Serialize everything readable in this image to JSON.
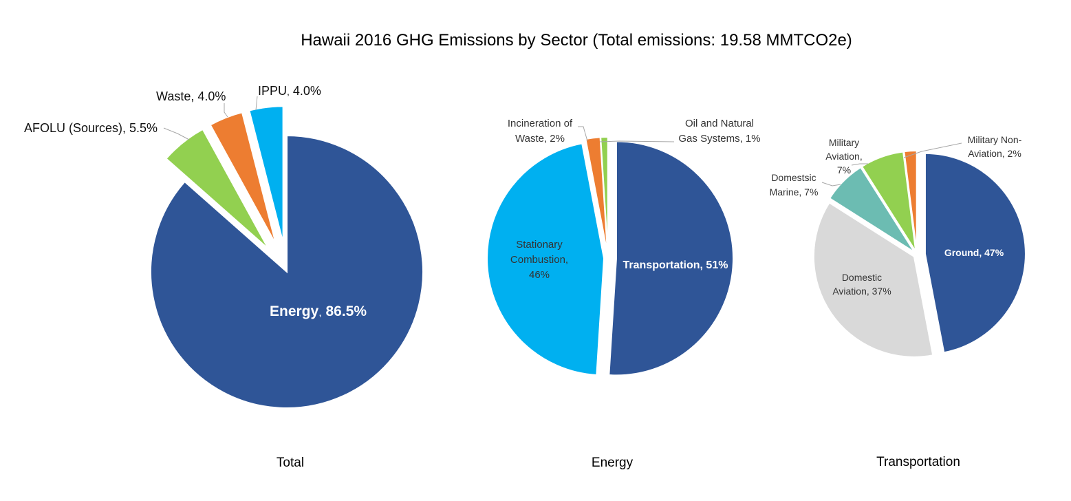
{
  "title": "Hawaii 2016 GHG Emissions by Sector (Total emissions: 19.58 MMTCO2e)",
  "colors": {
    "energy": "#2f5597",
    "afolu": "#92d050",
    "waste": "#ed7d31",
    "ippu": "#00b0f0",
    "stationary": "#00b0f0",
    "incineration": "#ed7d31",
    "oilgas": "#92d050",
    "ground": "#2f5597",
    "domestic_aviation": "#d9d9d9",
    "domestic_marine": "#6cbcb2",
    "military_aviation": "#92d050",
    "military_non_aviation": "#ed7d31"
  },
  "chart_data": [
    {
      "type": "pie",
      "caption": "Total",
      "slices": [
        {
          "key": "energy",
          "label": "Energy",
          "value": 86.5,
          "display": "86.5%"
        },
        {
          "key": "afolu",
          "label": "AFOLU (Sources)",
          "value": 5.5,
          "display": "5.5%"
        },
        {
          "key": "waste",
          "label": "Waste",
          "value": 4.0,
          "display": "4.0%"
        },
        {
          "key": "ippu",
          "label": "IPPU",
          "value": 4.0,
          "display": "4.0%"
        }
      ]
    },
    {
      "type": "pie",
      "caption": "Energy",
      "slices": [
        {
          "key": "transportation",
          "label": "Transportation",
          "value": 51,
          "display": "51%"
        },
        {
          "key": "stationary",
          "label": "Stationary Combustion",
          "value": 46,
          "display": "46%"
        },
        {
          "key": "incineration",
          "label": "Incineration of Waste",
          "value": 2,
          "display": "2%"
        },
        {
          "key": "oilgas",
          "label": "Oil and Natural Gas Systems",
          "value": 1,
          "display": "1%"
        }
      ]
    },
    {
      "type": "pie",
      "caption": "Transportation",
      "slices": [
        {
          "key": "ground",
          "label": "Ground",
          "value": 47,
          "display": "47%"
        },
        {
          "key": "domestic_aviation",
          "label": "Domestic Aviation",
          "value": 37,
          "display": "37%"
        },
        {
          "key": "domestic_marine",
          "label": "Domestsic Marine",
          "value": 7,
          "display": "7%"
        },
        {
          "key": "military_aviation",
          "label": "Military Aviation",
          "value": 7,
          "display": "7%"
        },
        {
          "key": "military_non_aviation",
          "label": "Military Non-Aviation",
          "value": 2,
          "display": "2%"
        }
      ]
    }
  ],
  "labels": {
    "total": {
      "energy_a": "Energy",
      "energy_sep": ",",
      "energy_b": " 86.5%",
      "afolu": "AFOLU (Sources), 5.5%",
      "waste": "Waste, 4.0%",
      "ippu_a": "IPPU",
      "ippu_sep": ",",
      "ippu_b": " 4.0%"
    },
    "energy": {
      "transportation": "Transportation, 51%",
      "stationary_l1": "Stationary",
      "stationary_l2": "Combustion,",
      "stationary_l3": "46%",
      "incin_l1": "Incineration of",
      "incin_l2": "Waste, 2%",
      "oil_l1": "Oil and Natural",
      "oil_l2": "Gas Systems, 1%"
    },
    "transportation": {
      "ground": "Ground, 47%",
      "dom_av_l1": "Domestic",
      "dom_av_l2": "Aviation, 37%",
      "dom_mar_l1": "Domestsic",
      "dom_mar_l2": "Marine, 7%",
      "mil_av_l1": "Military",
      "mil_av_l2": "Aviation,",
      "mil_av_l3": "7%",
      "mil_non_l1": "Military Non-",
      "mil_non_l2": "Aviation, 2%"
    }
  },
  "captions": {
    "total": "Total",
    "energy": "Energy",
    "transportation": "Transportation"
  }
}
